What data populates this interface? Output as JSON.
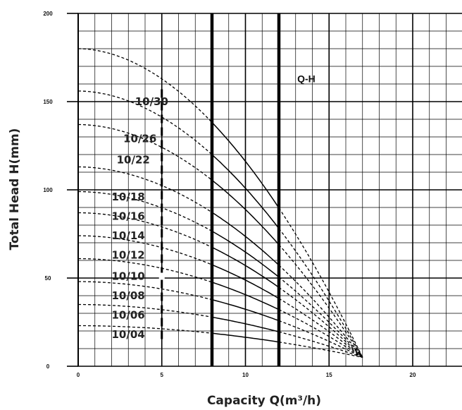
{
  "chart_data": {
    "type": "line",
    "title": "",
    "annotation": "Q-H",
    "xlabel": "Capacity Q(m³/h)",
    "ylabel": "Total Head H(mm)",
    "xlim": [
      0,
      23
    ],
    "ylim": [
      0,
      200
    ],
    "x_ticks": [
      "0",
      "5",
      "10",
      "15",
      "20"
    ],
    "y_ticks": [
      "0",
      "50",
      "100",
      "150",
      "200"
    ],
    "grid": true,
    "operating_range_x": [
      8,
      12
    ],
    "series": [
      {
        "name": "10/30",
        "y0": 180,
        "end_x": 17,
        "end_y": 5
      },
      {
        "name": "10/26",
        "y0": 156,
        "end_x": 17,
        "end_y": 5
      },
      {
        "name": "10/22",
        "y0": 137,
        "end_x": 17,
        "end_y": 5
      },
      {
        "name": "10/18",
        "y0": 113,
        "end_x": 17,
        "end_y": 5
      },
      {
        "name": "10/16",
        "y0": 99,
        "end_x": 17,
        "end_y": 5
      },
      {
        "name": "10/14",
        "y0": 87,
        "end_x": 17,
        "end_y": 5
      },
      {
        "name": "10/12",
        "y0": 74,
        "end_x": 17,
        "end_y": 5
      },
      {
        "name": "10/10",
        "y0": 61,
        "end_x": 17,
        "end_y": 5
      },
      {
        "name": "10/08",
        "y0": 48,
        "end_x": 17,
        "end_y": 5
      },
      {
        "name": "10/06",
        "y0": 35,
        "end_x": 17,
        "end_y": 5
      },
      {
        "name": "10/04",
        "y0": 23,
        "end_x": 17,
        "end_y": 5
      }
    ],
    "curve_labels": [
      {
        "text": "10/30",
        "x": 3.4,
        "y": 148
      },
      {
        "text": "10/26",
        "x": 2.7,
        "y": 127
      },
      {
        "text": "10/22",
        "x": 2.3,
        "y": 115
      },
      {
        "text": "10/18",
        "x": 2.0,
        "y": 94
      },
      {
        "text": "10/16",
        "x": 2.0,
        "y": 83
      },
      {
        "text": "10/14",
        "x": 2.0,
        "y": 72
      },
      {
        "text": "10/12",
        "x": 2.0,
        "y": 61
      },
      {
        "text": "10/10",
        "x": 2.0,
        "y": 49
      },
      {
        "text": "10/08",
        "x": 2.0,
        "y": 38
      },
      {
        "text": "10/06",
        "x": 2.0,
        "y": 27
      },
      {
        "text": "10/04",
        "x": 2.0,
        "y": 16
      }
    ],
    "annotation_pos": {
      "x": 13.1,
      "y": 161
    },
    "dashed_marker_x": 5
  }
}
